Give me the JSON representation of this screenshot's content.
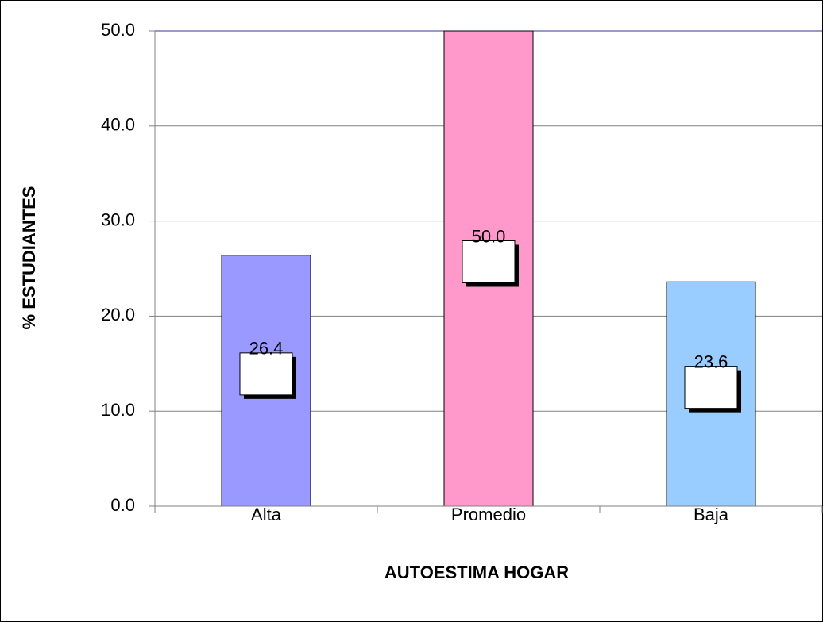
{
  "chart_data": {
    "type": "bar",
    "categories": [
      "Alta",
      "Promedio",
      "Baja"
    ],
    "values": [
      26.4,
      50.0,
      23.6
    ],
    "value_labels": [
      "26.4",
      "50.0",
      "23.6"
    ],
    "colors": [
      "#9999ff",
      "#ff99cc",
      "#99ccff"
    ],
    "ylabel": "% ESTUDIANTES",
    "xlabel": "AUTOESTIMA HOGAR",
    "ylim": [
      0,
      50
    ],
    "yticks": [
      {
        "value": 0,
        "label": "0.0"
      },
      {
        "value": 10,
        "label": "10.0"
      },
      {
        "value": 20,
        "label": "20.0"
      },
      {
        "value": 30,
        "label": "30.0"
      },
      {
        "value": 40,
        "label": "40.0"
      },
      {
        "value": 50,
        "label": "50.0"
      }
    ],
    "grid": true
  }
}
